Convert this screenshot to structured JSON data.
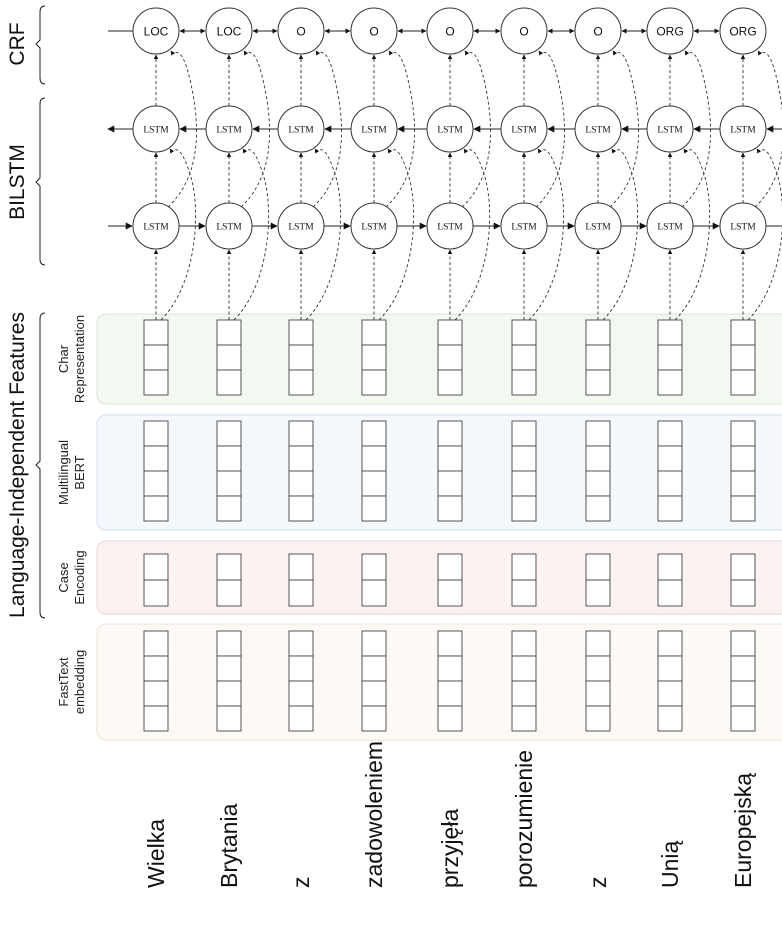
{
  "sections": {
    "crf": "CRF",
    "bilstm": "BILSTM",
    "features": "Language-Independent Features"
  },
  "feature_groups": [
    {
      "line1": "Char",
      "line2": "Representation",
      "cells": 3,
      "fill": "#f3f8f1",
      "stroke": "#d7e6d3"
    },
    {
      "line1": "Multilingual",
      "line2": "BERT",
      "cells": 4,
      "fill": "#f4f8fd",
      "stroke": "#cfdff0"
    },
    {
      "line1": "Case",
      "line2": "Encoding",
      "cells": 2,
      "fill": "#fdf2f2",
      "stroke": "#efd3d3"
    },
    {
      "line1": "FastText",
      "line2": "embedding",
      "cells": 4,
      "fill": "#fdf9f4",
      "stroke": "#efe3d2"
    }
  ],
  "lstm_label": "LSTM",
  "tokens": [
    {
      "word": "Wielka",
      "tag": "LOC"
    },
    {
      "word": "Brytania",
      "tag": "LOC"
    },
    {
      "word": "z",
      "tag": "O"
    },
    {
      "word": "zadowoleniem",
      "tag": "O"
    },
    {
      "word": "przyjęła",
      "tag": "O"
    },
    {
      "word": "porozumienie",
      "tag": "O"
    },
    {
      "word": "z",
      "tag": "O"
    },
    {
      "word": "Unią",
      "tag": "ORG"
    },
    {
      "word": "Europejską",
      "tag": "ORG"
    }
  ]
}
